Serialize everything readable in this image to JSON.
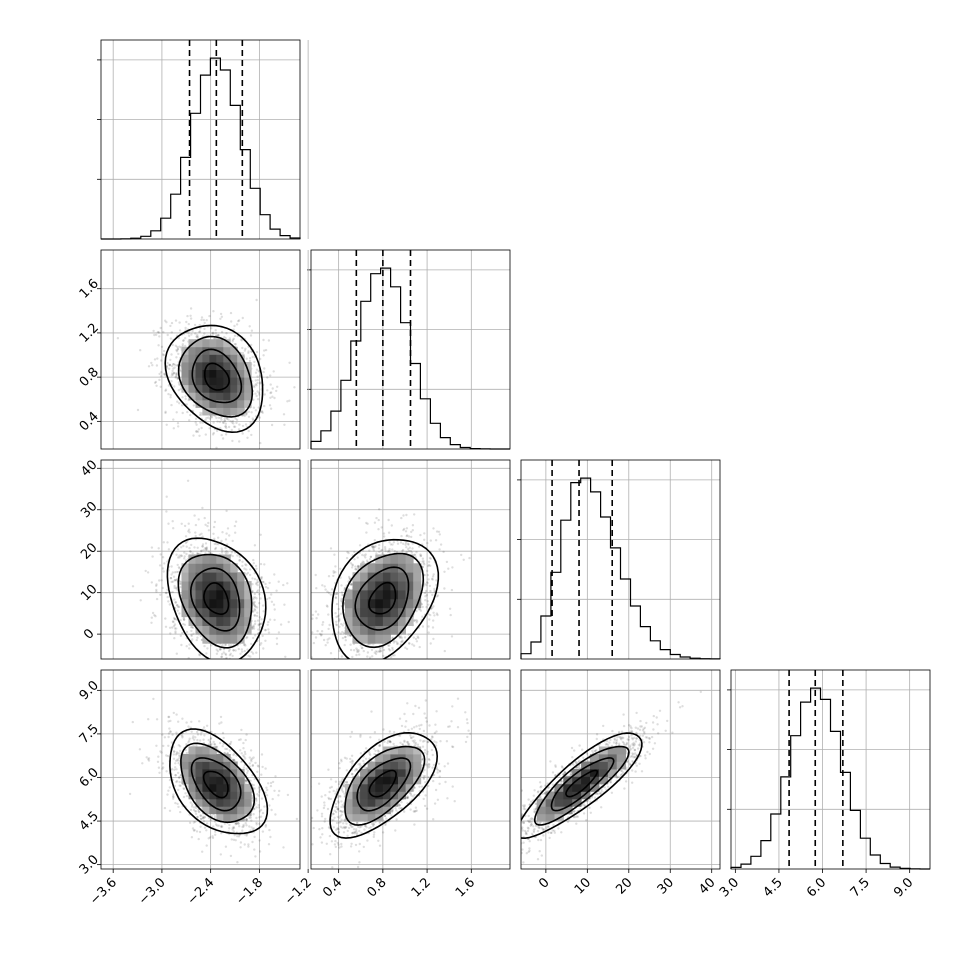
{
  "figure": {
    "kind": "corner plot",
    "panels_per_side": 4
  },
  "colors": {
    "frame": "#000000",
    "grid": "#b0b0b0",
    "points": "#000000",
    "density_max": "#000000"
  },
  "chart_data": {
    "type": "heatmap",
    "title": "",
    "params": [
      {
        "ticks": [
          -3.6,
          -3.0,
          -2.4,
          -1.8,
          -1.2
        ],
        "range": [
          -3.75,
          -1.3
        ],
        "quantiles": [
          -2.66,
          -2.33,
          -2.01
        ],
        "mean": -2.33,
        "sd": 0.3
      },
      {
        "ticks": [
          0.4,
          0.8,
          1.2,
          1.6
        ],
        "range": [
          0.15,
          1.95
        ],
        "quantiles": [
          0.56,
          0.8,
          1.05
        ],
        "mean": 0.8,
        "sd": 0.24
      },
      {
        "ticks": [
          0,
          10,
          20,
          30,
          40
        ],
        "range": [
          -6,
          42
        ],
        "quantiles": [
          1.5,
          8,
          16
        ],
        "mean": 8.5,
        "sd": 7.5
      },
      {
        "ticks": [
          3.0,
          4.5,
          6.0,
          7.5,
          9.0
        ],
        "range": [
          2.85,
          9.7
        ],
        "quantiles": [
          4.85,
          5.75,
          6.7
        ],
        "mean": 5.78,
        "sd": 0.9
      }
    ],
    "tick_labels": [
      [
        "−3.6",
        "−3.0",
        "−2.4",
        "−1.8",
        "−1.2"
      ],
      [
        "0.4",
        "0.8",
        "1.2",
        "1.6"
      ],
      [
        "0",
        "10",
        "20",
        "30",
        "40"
      ],
      [
        "3.0",
        "4.5",
        "6.0",
        "7.5",
        "9.0"
      ]
    ],
    "hist_yticks": [
      0.33,
      0.66,
      0.99
    ],
    "correlations": {
      "1-0": -0.25,
      "2-0": -0.25,
      "2-1": 0.3,
      "3-0": -0.45,
      "3-1": 0.6,
      "3-2": 0.85
    },
    "contour_levels_sigma": [
      0.5,
      1.0,
      1.5,
      2.0
    ],
    "grid": true,
    "samples_per_panel": 1500
  }
}
